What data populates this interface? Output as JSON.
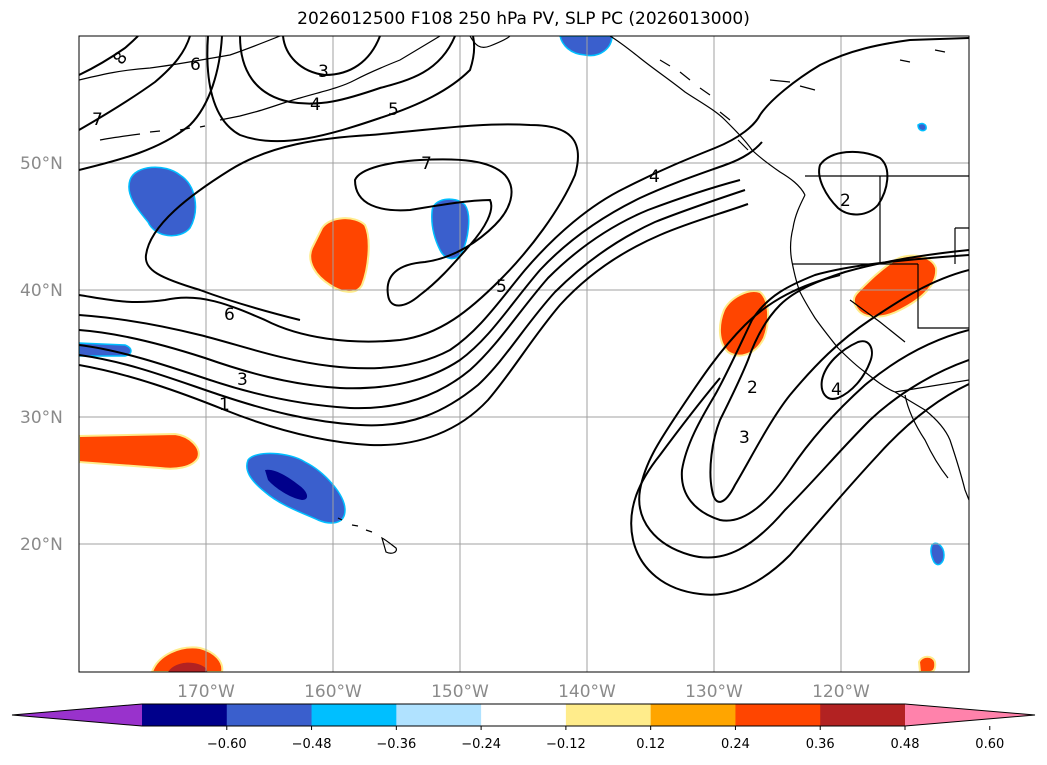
{
  "title": "2026012500 F108 250 hPa PV, SLP PC (2026013000)",
  "lat_labels": [
    "50°N",
    "40°N",
    "30°N",
    "20°N"
  ],
  "lon_labels": [
    "170°W",
    "160°W",
    "150°W",
    "140°W",
    "130°W",
    "120°W"
  ],
  "colorbar": {
    "colors": [
      "#9932cc",
      "#00008b",
      "#3a5fcd",
      "#00bfff",
      "#b0e2ff",
      "#ffffff",
      "#ffec8b",
      "#ffa500",
      "#ff4500",
      "#b22222",
      "#ff82ab"
    ],
    "ticks": [
      "−0.60",
      "−0.48",
      "−0.36",
      "−0.24",
      "−0.12",
      "0.12",
      "0.24",
      "0.36",
      "0.48",
      "0.60"
    ]
  },
  "contour_labels": {
    "c8": "8",
    "c6a": "6",
    "c3a": "3",
    "c4a": "4",
    "c5a": "5",
    "c7a": "7",
    "c7b": "7",
    "c4b": "4",
    "c2a": "2",
    "c5b": "5",
    "c6b": "6",
    "c3b": "3",
    "c1": "1",
    "c2b": "2",
    "c4c": "4",
    "c3c": "3"
  },
  "colors": {
    "contour": "#000000",
    "grid": "#a0a0a0",
    "coast": "#000000"
  }
}
